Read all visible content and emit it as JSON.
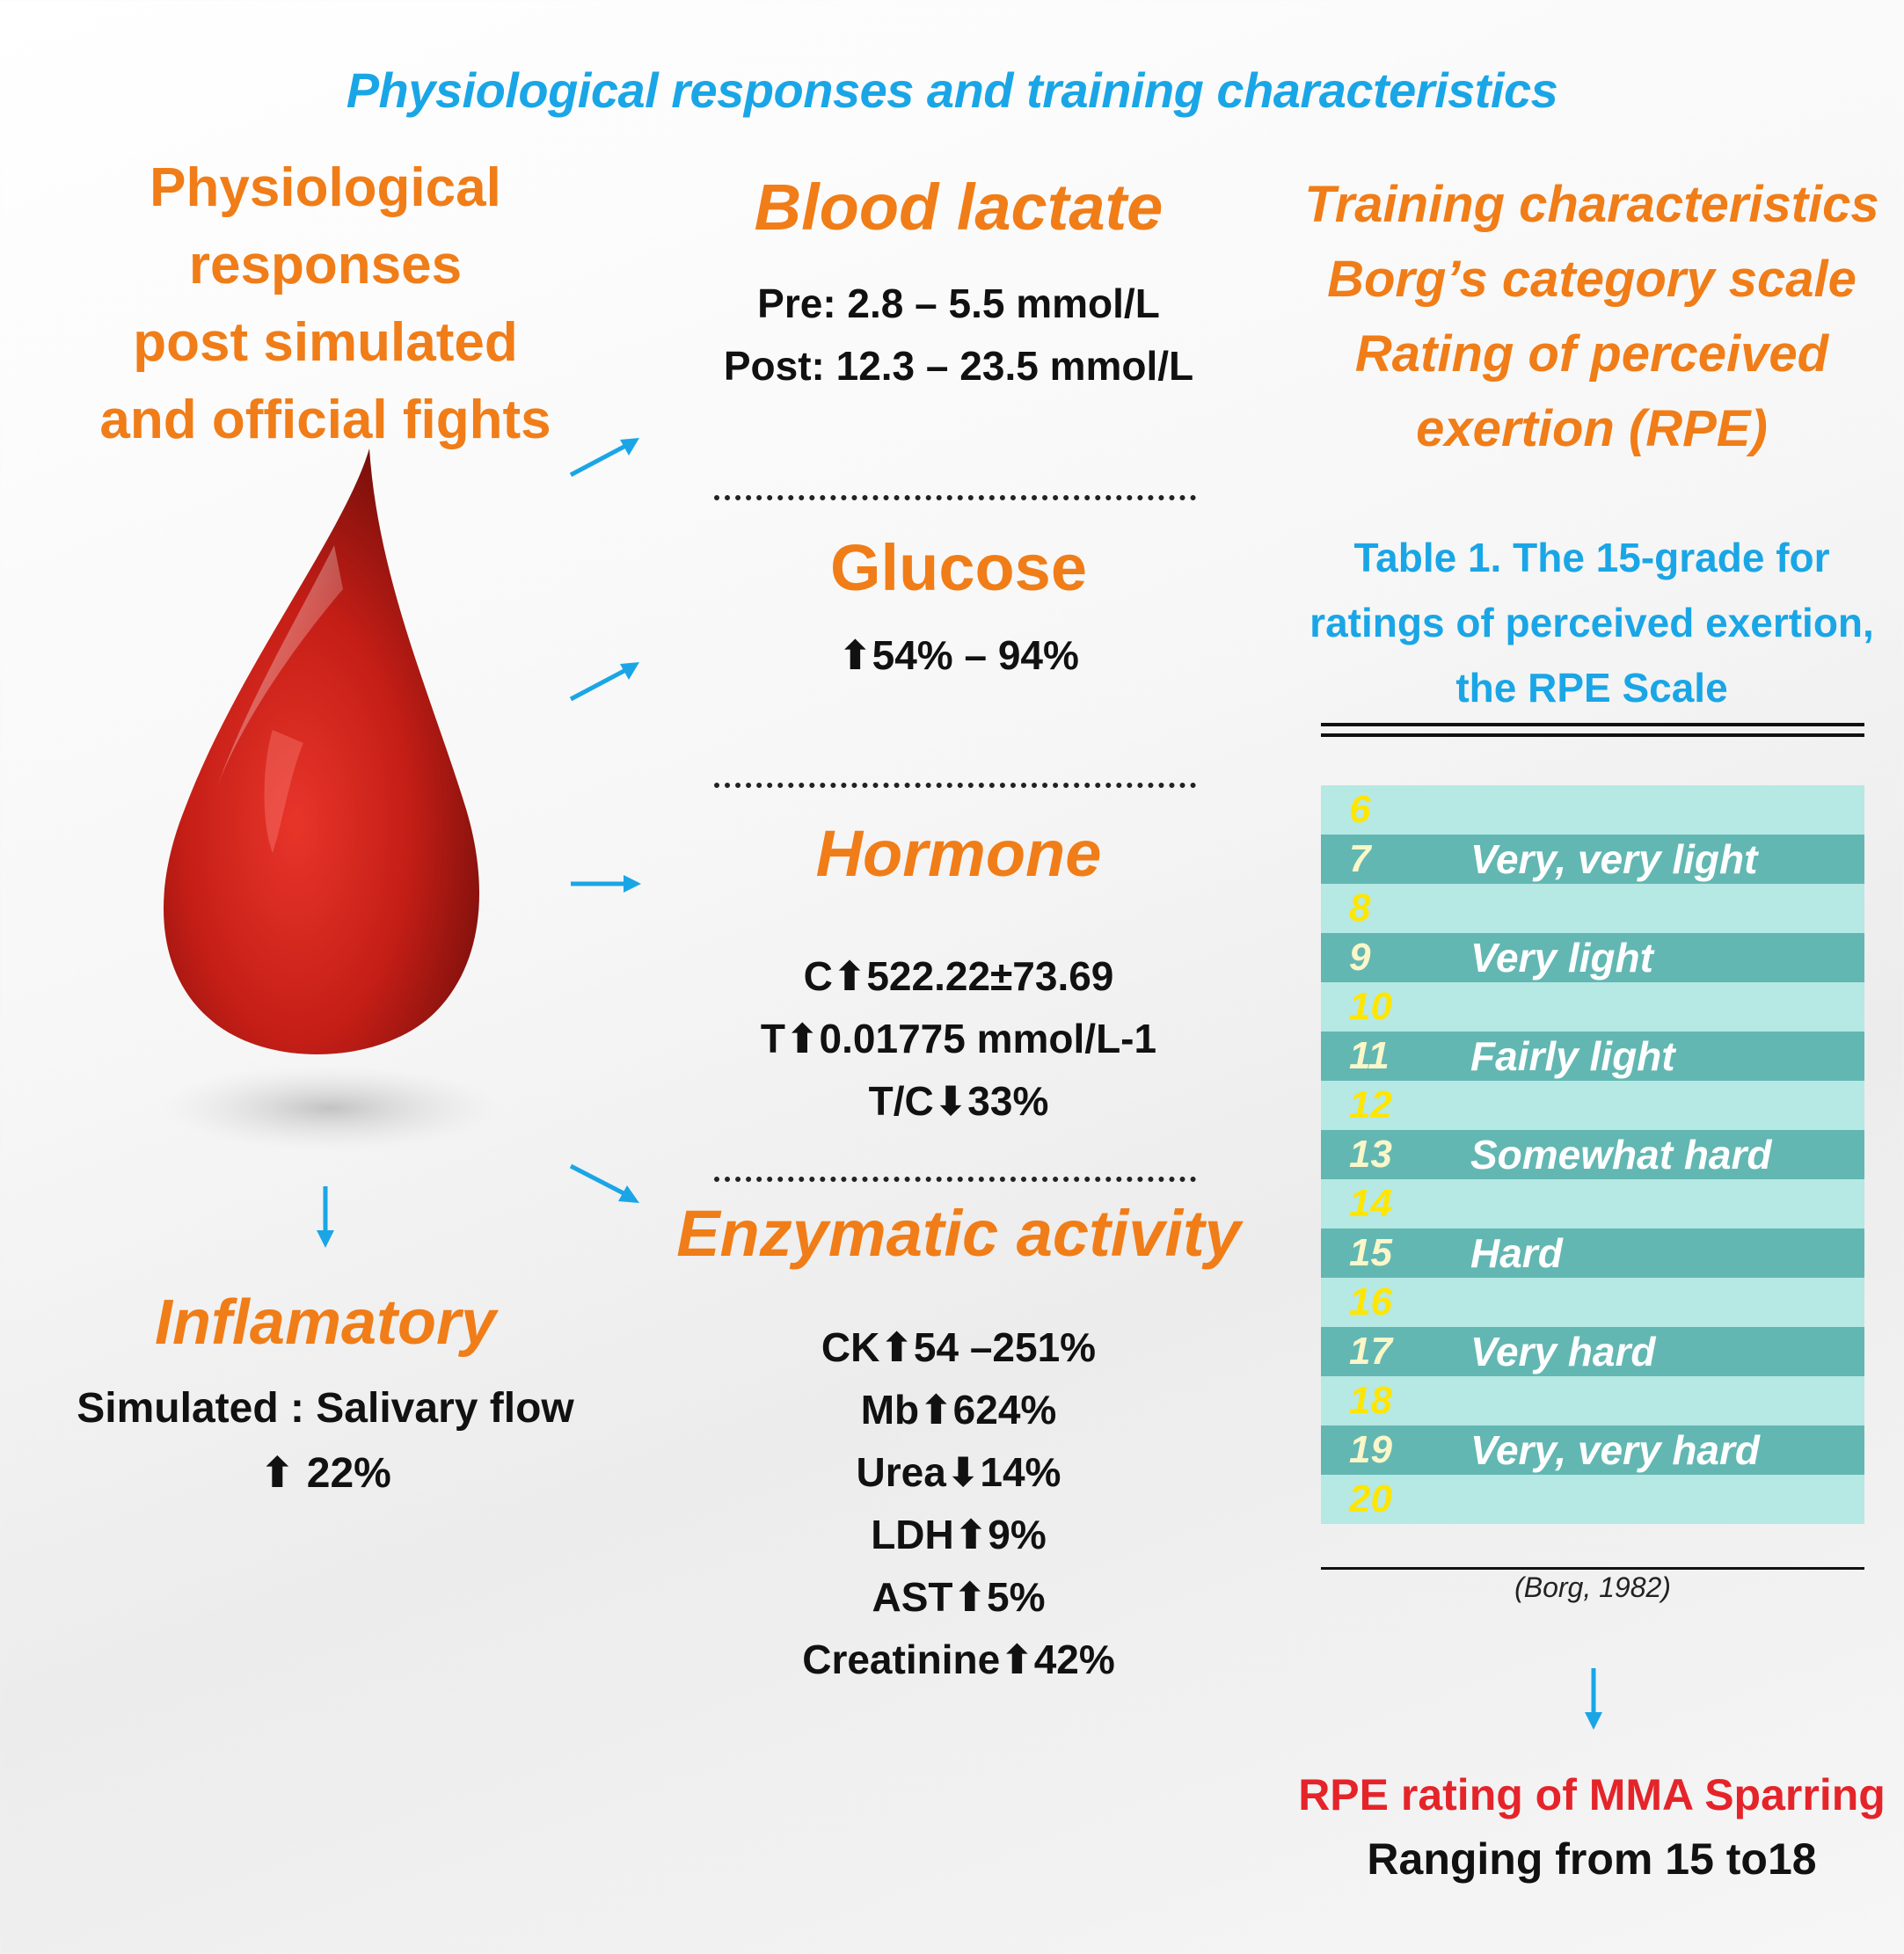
{
  "title": "Physiological responses and training characteristics",
  "left": {
    "heading_lines": [
      "Physiological",
      "responses",
      "post simulated",
      "and official fights"
    ],
    "inflammatory": {
      "heading": "Inflamatory",
      "lines": [
        "Simulated : Salivary flow",
        "⬆ 22%"
      ]
    }
  },
  "middle": {
    "blood_lactate": {
      "heading": "Blood lactate",
      "lines": [
        "Pre: 2.8 – 5.5 mmol/L",
        "Post: 12.3 – 23.5 mmol/L"
      ]
    },
    "glucose": {
      "heading": "Glucose",
      "lines": [
        "⬆54% – 94%"
      ]
    },
    "hormone": {
      "heading": "Hormone",
      "lines": [
        "C⬆522.22±73.69",
        "T⬆0.01775 mmol/L-1",
        "T/C⬇33%"
      ]
    },
    "enzymatic": {
      "heading": "Enzymatic activity",
      "lines": [
        "CK⬆54 –251%",
        "Mb⬆624%",
        "Urea⬇14%",
        "LDH⬆9%",
        "AST⬆5%",
        "Creatinine⬆42%"
      ]
    }
  },
  "right": {
    "heading_lines": [
      "Training characteristics",
      "Borg’s category scale",
      "Rating of perceived",
      "exertion (RPE)"
    ],
    "table_caption_lines": [
      "Table 1. The 15-grade for",
      "ratings of perceived exertion,",
      "the RPE Scale"
    ],
    "rpe_rows": [
      {
        "num": "6",
        "label": ""
      },
      {
        "num": "7",
        "label": "Very, very light"
      },
      {
        "num": "8",
        "label": ""
      },
      {
        "num": "9",
        "label": "Very light"
      },
      {
        "num": "10",
        "label": ""
      },
      {
        "num": "11",
        "label": "Fairly light"
      },
      {
        "num": "12",
        "label": ""
      },
      {
        "num": "13",
        "label": "Somewhat hard"
      },
      {
        "num": "14",
        "label": ""
      },
      {
        "num": "15",
        "label": "Hard"
      },
      {
        "num": "16",
        "label": ""
      },
      {
        "num": "17",
        "label": "Very hard"
      },
      {
        "num": "18",
        "label": ""
      },
      {
        "num": "19",
        "label": "Very, very hard"
      },
      {
        "num": "20",
        "label": ""
      }
    ],
    "citation": "(Borg, 1982)",
    "final_heading": "RPE rating of  MMA Sparring",
    "final_text": "Ranging from 15 to18"
  },
  "colors": {
    "title_blue": "#1aa6e6",
    "heading_orange": "#f07d18",
    "final_red": "#e5242a",
    "rpe_light": "#b6e8e4",
    "rpe_dark": "#62b7b2",
    "blood": "#c41e16"
  },
  "icons": {
    "blood_drop": "blood-drop-icon",
    "arrows": "arrow-icon"
  }
}
